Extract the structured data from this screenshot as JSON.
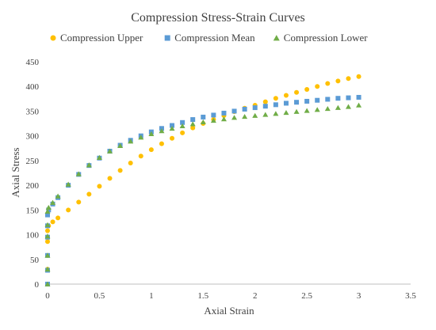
{
  "chart_data": {
    "type": "scatter",
    "title": "Compression Stress-Strain Curves",
    "xlabel": "Axial Strain",
    "ylabel": "Axial Stress",
    "xlim": [
      0,
      3.5
    ],
    "ylim": [
      0,
      450
    ],
    "x_ticks": [
      0,
      0.5,
      1,
      1.5,
      2,
      2.5,
      3,
      3.5
    ],
    "x_tick_labels": [
      "0",
      "0.5",
      "1",
      "1.5",
      "2",
      "2.5",
      "3",
      "3.5"
    ],
    "y_ticks": [
      0,
      50,
      100,
      150,
      200,
      250,
      300,
      350,
      400,
      450
    ],
    "y_tick_labels": [
      "0",
      "50",
      "100",
      "150",
      "200",
      "250",
      "300",
      "350",
      "400",
      "450"
    ],
    "grid": "none",
    "legend_position": "top",
    "series": [
      {
        "name": "Compression Upper",
        "marker": "circle",
        "color": "#FFC000",
        "x": [
          0,
          0,
          0,
          0,
          0,
          0.01,
          0.05,
          0.1,
          0.2,
          0.3,
          0.4,
          0.5,
          0.6,
          0.7,
          0.8,
          0.9,
          1.0,
          1.1,
          1.2,
          1.3,
          1.4,
          1.5,
          1.6,
          1.7,
          1.8,
          1.9,
          2.0,
          2.1,
          2.2,
          2.3,
          2.4,
          2.5,
          2.6,
          2.7,
          2.8,
          2.9,
          3.0
        ],
        "y": [
          0,
          30,
          58,
          86,
          108,
          118,
          126,
          134,
          150,
          166,
          182,
          198,
          214,
          230,
          245,
          259,
          272,
          284,
          295,
          306,
          316,
          325,
          333,
          341,
          349,
          356,
          362,
          369,
          376,
          382,
          388,
          394,
          400,
          406,
          411,
          416,
          420
        ]
      },
      {
        "name": "Compression Mean",
        "marker": "square",
        "color": "#5B9BD5",
        "x": [
          0,
          0,
          0,
          0,
          0,
          0,
          0.01,
          0.05,
          0.1,
          0.2,
          0.3,
          0.4,
          0.5,
          0.6,
          0.7,
          0.8,
          0.9,
          1.0,
          1.1,
          1.2,
          1.3,
          1.4,
          1.5,
          1.6,
          1.7,
          1.8,
          1.9,
          2.0,
          2.1,
          2.2,
          2.3,
          2.4,
          2.5,
          2.6,
          2.7,
          2.8,
          2.9,
          3.0
        ],
        "y": [
          0,
          28,
          58,
          95,
          118,
          140,
          150,
          162,
          175,
          200,
          222,
          240,
          255,
          269,
          281,
          291,
          300,
          308,
          315,
          321,
          327,
          333,
          338,
          342,
          346,
          350,
          354,
          357,
          360,
          363,
          366,
          368,
          370,
          372,
          374,
          376,
          377,
          378
        ]
      },
      {
        "name": "Compression Lower",
        "marker": "triangle",
        "color": "#70AD47",
        "x": [
          0,
          0,
          0,
          0,
          0,
          0,
          0.01,
          0.05,
          0.1,
          0.2,
          0.3,
          0.4,
          0.5,
          0.6,
          0.7,
          0.8,
          0.9,
          1.0,
          1.1,
          1.2,
          1.3,
          1.4,
          1.5,
          1.6,
          1.7,
          1.8,
          1.9,
          2.0,
          2.1,
          2.2,
          2.3,
          2.4,
          2.5,
          2.6,
          2.7,
          2.8,
          2.9,
          3.0
        ],
        "y": [
          0,
          30,
          58,
          97,
          120,
          147,
          155,
          165,
          178,
          202,
          223,
          241,
          256,
          269,
          280,
          289,
          297,
          304,
          310,
          315,
          320,
          324,
          328,
          331,
          334,
          337,
          339,
          341,
          343,
          345,
          347,
          349,
          351,
          353,
          355,
          357,
          359,
          362
        ]
      }
    ],
    "colors": {
      "axis": "#bfbfbf",
      "text": "#404040"
    }
  }
}
